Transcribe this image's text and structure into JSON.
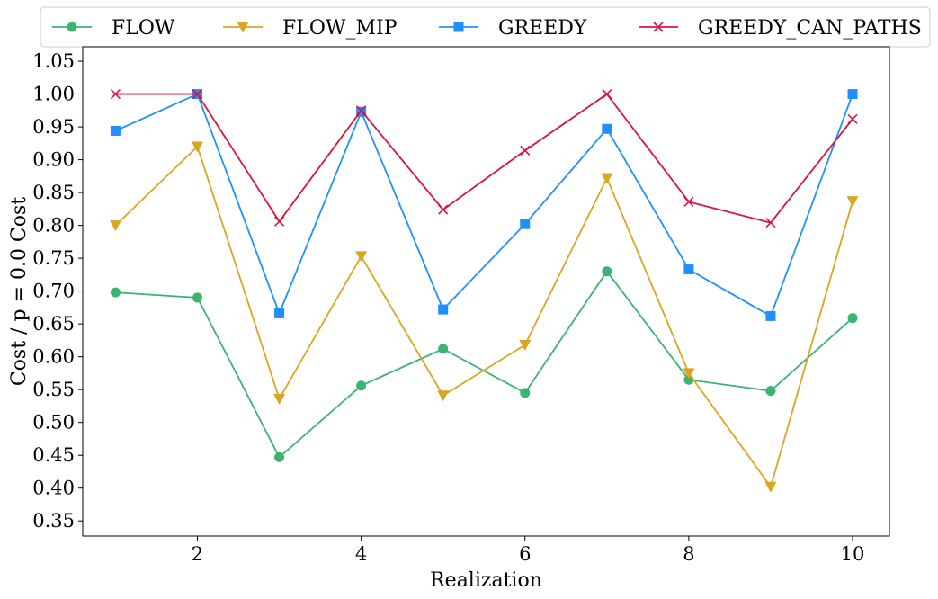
{
  "chart_data": {
    "type": "line",
    "xlabel": "Realization",
    "ylabel": "Cost / p = 0.0 Cost",
    "xlim": [
      0.6,
      10.45
    ],
    "ylim": [
      0.327,
      1.072
    ],
    "xticks": [
      2,
      4,
      6,
      8,
      10
    ],
    "xtick_labels": [
      "2",
      "4",
      "6",
      "8",
      "10"
    ],
    "yticks": [
      0.35,
      0.4,
      0.45,
      0.5,
      0.55,
      0.6,
      0.65,
      0.7,
      0.75,
      0.8,
      0.85,
      0.9,
      0.95,
      1.0,
      1.05
    ],
    "ytick_labels": [
      "0.35",
      "0.40",
      "0.45",
      "0.50",
      "0.55",
      "0.60",
      "0.65",
      "0.70",
      "0.75",
      "0.80",
      "0.85",
      "0.90",
      "0.95",
      "1.00",
      "1.05"
    ],
    "grid": false,
    "legend_position": "top, outside plot, horizontal",
    "x": [
      1,
      2,
      3,
      4,
      5,
      6,
      7,
      8,
      9,
      10
    ],
    "series": [
      {
        "name": "FLOW",
        "color": "#3cb371",
        "marker": "circle",
        "values": [
          0.698,
          0.69,
          0.447,
          0.556,
          0.612,
          0.545,
          0.73,
          0.565,
          0.548,
          0.659
        ]
      },
      {
        "name": "FLOW_MIP",
        "color": "#daa520",
        "marker": "triangle-down",
        "values": [
          0.8,
          0.92,
          0.536,
          0.753,
          0.541,
          0.618,
          0.872,
          0.575,
          0.402,
          0.837
        ]
      },
      {
        "name": "GREEDY",
        "color": "#1e90ff",
        "marker": "square",
        "values": [
          0.944,
          1.0,
          0.666,
          0.973,
          0.672,
          0.802,
          0.947,
          0.733,
          0.662,
          1.0
        ]
      },
      {
        "name": "GREEDY_CAN_PATHS",
        "color": "#dc143c",
        "marker": "x",
        "values": [
          1.0,
          1.0,
          0.806,
          0.975,
          0.824,
          0.914,
          1.0,
          0.836,
          0.804,
          0.962
        ]
      }
    ]
  }
}
